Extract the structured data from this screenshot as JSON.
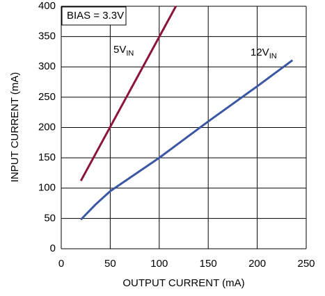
{
  "chart_data": {
    "type": "line",
    "xlabel": "OUTPUT CURRENT (mA)",
    "ylabel": "INPUT CURRENT (mA)",
    "annotation": "BIAS = 3.3V",
    "series": [
      {
        "name": "5V",
        "sub": "IN",
        "color": "#8b1538",
        "x": [
          20,
          117
        ],
        "values": [
          112,
          400
        ]
      },
      {
        "name": "12V",
        "sub": "IN",
        "color": "#3b56a3",
        "x": [
          20,
          35,
          50,
          100,
          150,
          200,
          236
        ],
        "values": [
          48,
          73,
          95,
          150,
          210,
          268,
          311
        ]
      }
    ],
    "xlim": [
      0,
      250
    ],
    "xticks": [
      0,
      50,
      100,
      150,
      200,
      250
    ],
    "ylim": [
      0,
      400
    ],
    "yticks": [
      0,
      50,
      100,
      150,
      200,
      250,
      300,
      350,
      400
    ],
    "grid": true
  }
}
